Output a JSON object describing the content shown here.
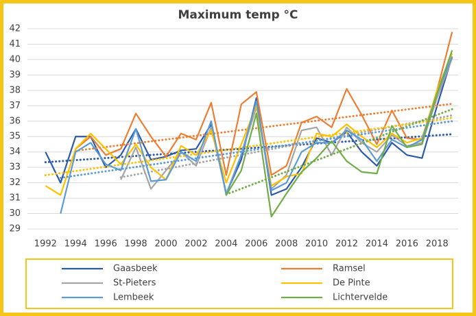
{
  "chart_data": {
    "type": "line",
    "title": "Maximum temp °C",
    "x": [
      1992,
      1993,
      1994,
      1995,
      1996,
      1997,
      1998,
      1999,
      2000,
      2001,
      2002,
      2003,
      2004,
      2005,
      2006,
      2007,
      2008,
      2009,
      2010,
      2011,
      2012,
      2013,
      2014,
      2015,
      2016,
      2017,
      2018,
      2019
    ],
    "xlim": [
      1990.8,
      2019.4
    ],
    "xticks": [
      1992,
      1994,
      1996,
      1998,
      2000,
      2002,
      2004,
      2006,
      2008,
      2010,
      2012,
      2014,
      2016,
      2018
    ],
    "ylim": [
      29,
      42
    ],
    "yticks": [
      29,
      30,
      31,
      32,
      33,
      34,
      35,
      36,
      37,
      38,
      39,
      40,
      41,
      42
    ],
    "grid": true,
    "legend": "bottom",
    "trendline": true,
    "series": [
      {
        "name": "Gaasbeek",
        "color": "#2e59a8",
        "values": [
          34.0,
          32.0,
          35.0,
          35.0,
          33.0,
          33.8,
          35.5,
          33.5,
          33.7,
          34.1,
          34.2,
          35.8,
          31.3,
          33.5,
          37.5,
          31.2,
          31.6,
          33.0,
          34.9,
          34.6,
          35.3,
          34.0,
          33.1,
          34.6,
          33.8,
          33.6,
          37.0,
          40.2
        ]
      },
      {
        "name": "Ramsel",
        "color": "#ed7d31",
        "values": [
          null,
          null,
          34.2,
          35.0,
          33.8,
          34.2,
          36.5,
          35.0,
          33.7,
          35.2,
          34.8,
          37.2,
          32.5,
          37.1,
          37.9,
          32.5,
          33.1,
          35.9,
          36.3,
          35.6,
          38.1,
          36.4,
          34.5,
          36.7,
          34.9,
          34.8,
          38.0,
          41.8
        ]
      },
      {
        "name": "St-Pieters",
        "color": "#a5a5a5",
        "values": [
          null,
          null,
          null,
          null,
          null,
          32.2,
          34.3,
          31.6,
          32.8,
          34.0,
          33.1,
          35.6,
          31.3,
          33.8,
          36.9,
          31.6,
          32.5,
          35.4,
          35.6,
          33.8,
          35.6,
          34.6,
          34.0,
          35.1,
          34.4,
          34.6,
          37.5,
          40.1
        ]
      },
      {
        "name": "De Pinte",
        "color": "#ffc000",
        "values": [
          31.8,
          31.2,
          34.2,
          35.2,
          34.2,
          33.2,
          34.5,
          33.0,
          32.2,
          34.4,
          33.8,
          35.4,
          32.0,
          34.5,
          37.0,
          31.8,
          32.4,
          32.6,
          35.2,
          35.0,
          35.8,
          35.0,
          34.3,
          35.2,
          34.6,
          34.9,
          38.0,
          40.4
        ]
      },
      {
        "name": "Lembeek",
        "color": "#5b9bd5",
        "values": [
          null,
          30.0,
          34.0,
          34.6,
          33.2,
          32.8,
          35.5,
          32.1,
          32.2,
          34.0,
          33.4,
          36.0,
          31.2,
          33.8,
          37.3,
          31.5,
          32.0,
          34.0,
          34.6,
          34.6,
          35.4,
          34.8,
          33.4,
          34.8,
          34.3,
          34.8,
          37.8,
          40.2
        ]
      },
      {
        "name": "Lichtervelde",
        "color": "#70ad47",
        "values": [
          null,
          null,
          null,
          null,
          null,
          null,
          null,
          null,
          null,
          null,
          null,
          null,
          31.2,
          32.8,
          36.5,
          29.8,
          31.3,
          32.7,
          33.6,
          34.7,
          33.4,
          32.7,
          32.6,
          35.7,
          34.3,
          34.5,
          37.8,
          40.6
        ]
      }
    ]
  }
}
